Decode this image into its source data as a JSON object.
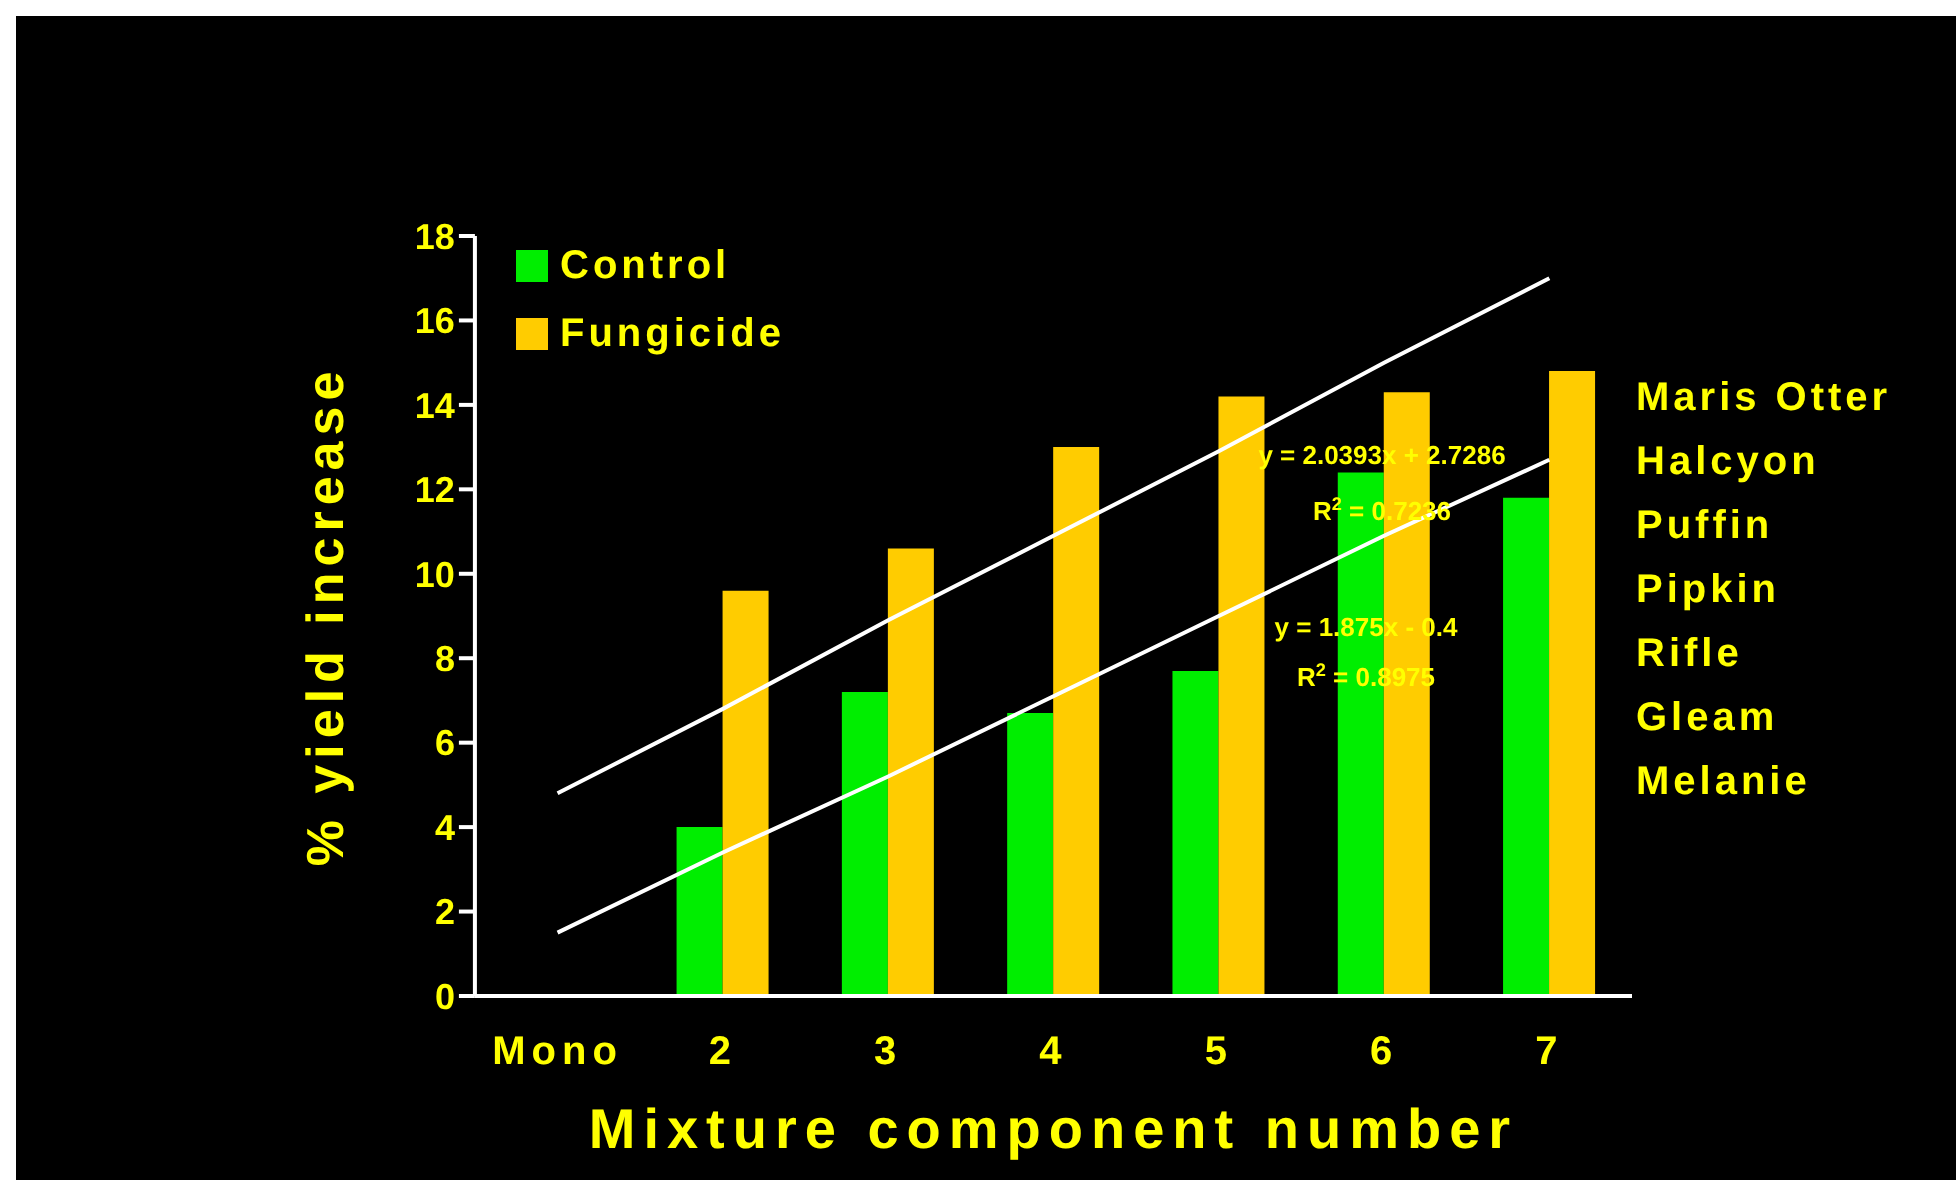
{
  "chart_data": {
    "type": "bar",
    "xlabel": "Mixture component number",
    "ylabel": "% yield increase",
    "categories": [
      "Mono",
      "2",
      "3",
      "4",
      "5",
      "6",
      "7"
    ],
    "series": [
      {
        "name": "Control",
        "color": "#00ee00",
        "values": [
          null,
          4.0,
          7.2,
          6.7,
          7.7,
          12.4,
          11.8
        ]
      },
      {
        "name": "Fungicide",
        "color": "#ffcc00",
        "values": [
          null,
          9.6,
          10.6,
          13.0,
          14.2,
          14.3,
          14.8
        ]
      },
      {
        "type": "line",
        "color": "#ffffff",
        "values": [
          4.8,
          6.8,
          8.9,
          10.9,
          12.9,
          15.0,
          17.0
        ]
      },
      {
        "type": "line",
        "color": "#ffffff",
        "values": [
          1.5,
          3.4,
          5.2,
          7.1,
          9.0,
          10.9,
          12.7
        ]
      }
    ],
    "ylim": [
      0,
      18
    ],
    "yticks": [
      0,
      2,
      4,
      6,
      8,
      10,
      12,
      14,
      16,
      18
    ],
    "grid": false,
    "legend": "top left",
    "marker": "none",
    "line_style": "solid",
    "annotations": [
      "y = 2.0393x + 2.7286",
      "R$^{2}$ = 0.7236",
      "y = 1.875x - 0.4",
      "R$^{2}$ = 0.8975",
      "Maris Otter",
      "Halcyon",
      "Puffin",
      "Pipkin",
      "Rifle",
      "Gleam",
      "Melanie"
    ]
  }
}
